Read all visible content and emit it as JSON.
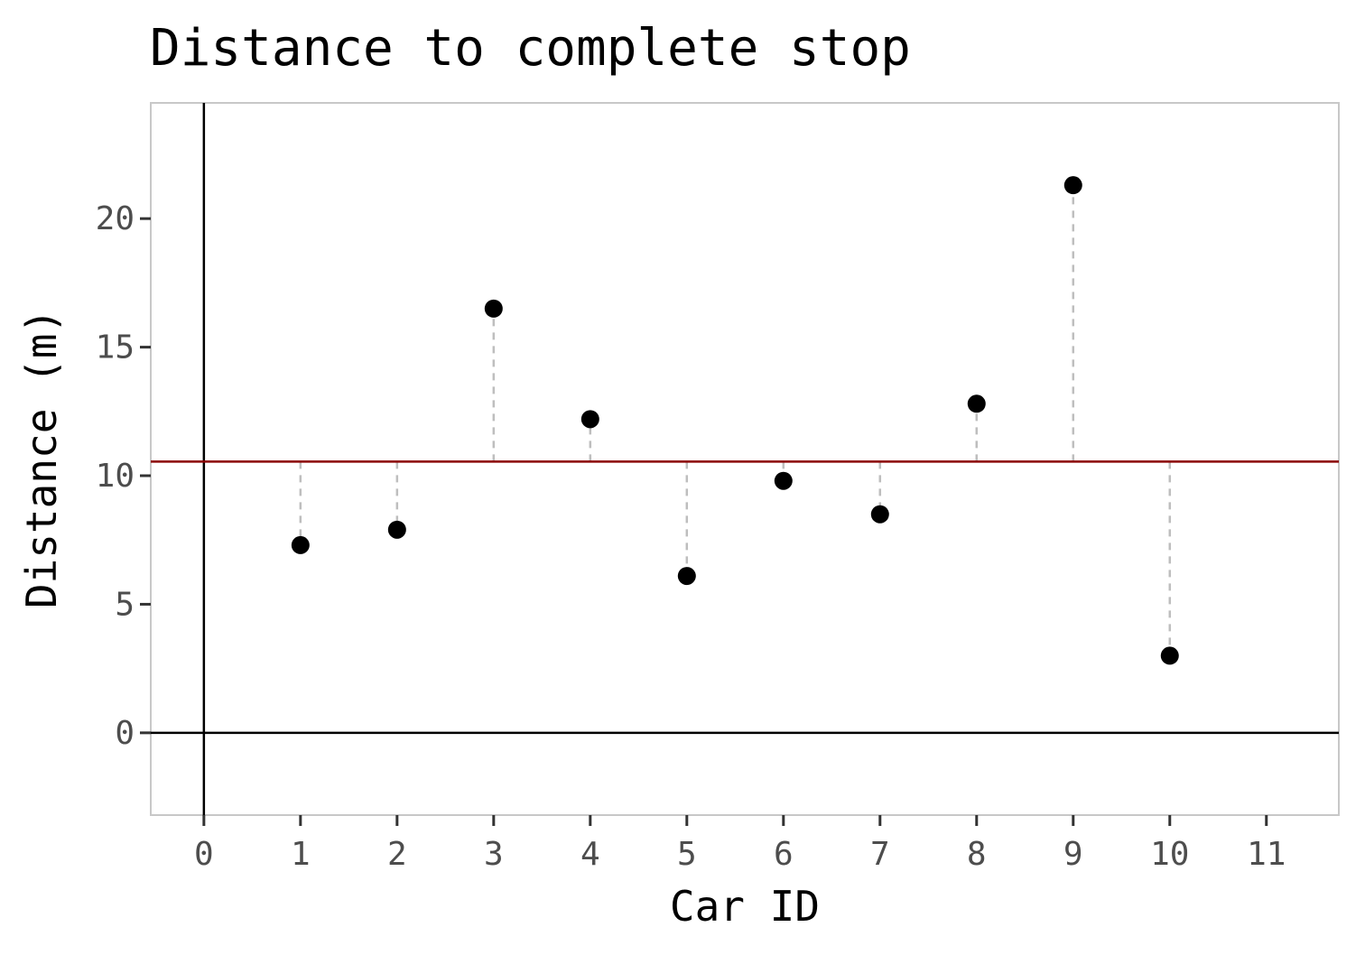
{
  "chart_data": {
    "type": "scatter",
    "title": "Distance to complete stop",
    "xlabel": "Car ID",
    "ylabel": "Distance (m)",
    "xlim": [
      -0.55,
      11.75
    ],
    "ylim": [
      -3.2,
      24.5
    ],
    "x_ticks": [
      0,
      1,
      2,
      3,
      4,
      5,
      6,
      7,
      8,
      9,
      10,
      11
    ],
    "x_tick_labels": [
      "0",
      "1",
      "2",
      "3",
      "4",
      "5",
      "6",
      "7",
      "8",
      "9",
      "10",
      "11"
    ],
    "y_ticks": [
      0,
      5,
      10,
      15,
      20
    ],
    "y_tick_labels": [
      "0",
      "5",
      "10",
      "15",
      "20"
    ],
    "grid": false,
    "series": [
      {
        "x": [
          1,
          2,
          3,
          4,
          5,
          6,
          7,
          8,
          9,
          10
        ],
        "y": [
          7.3,
          7.9,
          16.5,
          12.2,
          6.1,
          9.8,
          8.5,
          12.8,
          21.3,
          3.0
        ]
      }
    ],
    "mean_line": {
      "y": 10.55,
      "color": "#8b0000"
    },
    "reference_lines": {
      "x": 0,
      "y": 0,
      "color": "#000000"
    },
    "point_color": "#000000",
    "segment_color": "#bebebe",
    "panel_border_color": "#c8c8c8"
  }
}
